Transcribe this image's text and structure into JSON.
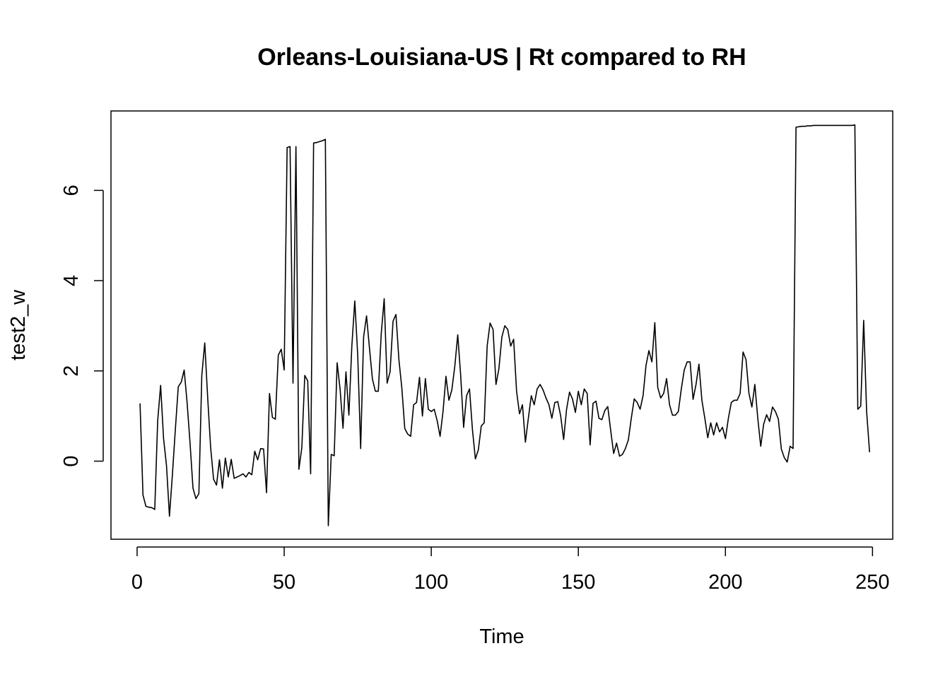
{
  "chart_data": {
    "type": "line",
    "title": "Orleans-Louisiana-US | Rt compared to RH",
    "xlabel": "Time",
    "ylabel": "test2_w",
    "xlim": [
      -8.88,
      256.88
    ],
    "ylim": [
      -1.73,
      7.76
    ],
    "x_ticks": [
      0,
      50,
      100,
      150,
      200,
      250
    ],
    "y_ticks": [
      0,
      2,
      4,
      6
    ],
    "grid": false,
    "legend": "none",
    "line_color": "#000000",
    "series": [
      {
        "x_start": 1,
        "x_step": 1,
        "values": [
          1.28,
          -0.75,
          -1.0,
          -1.02,
          -1.03,
          -1.07,
          0.9,
          1.68,
          0.5,
          -0.1,
          -1.22,
          -0.3,
          0.7,
          1.65,
          1.75,
          2.02,
          1.3,
          0.4,
          -0.6,
          -0.83,
          -0.72,
          1.9,
          2.62,
          1.4,
          0.3,
          -0.4,
          -0.53,
          0.03,
          -0.6,
          0.07,
          -0.35,
          0.04,
          -0.38,
          -0.35,
          -0.32,
          -0.28,
          -0.35,
          -0.25,
          -0.3,
          0.22,
          0.03,
          0.28,
          0.27,
          -0.7,
          1.5,
          0.97,
          0.93,
          2.35,
          2.48,
          2.02,
          6.95,
          6.97,
          1.73,
          6.97,
          -0.18,
          0.3,
          1.9,
          1.78,
          -0.28,
          7.05,
          7.06,
          7.08,
          7.1,
          7.13,
          -1.43,
          0.15,
          0.12,
          2.18,
          1.6,
          0.73,
          1.98,
          1.02,
          2.55,
          3.55,
          2.35,
          0.28,
          2.75,
          3.22,
          2.5,
          1.82,
          1.55,
          1.55,
          2.83,
          3.6,
          1.73,
          1.98,
          3.1,
          3.25,
          2.25,
          1.62,
          0.72,
          0.6,
          0.55,
          1.25,
          1.3,
          1.86,
          1.0,
          1.83,
          1.15,
          1.1,
          1.15,
          0.9,
          0.55,
          1.1,
          1.88,
          1.35,
          1.58,
          2.1,
          2.8,
          1.9,
          0.75,
          1.45,
          1.6,
          0.7,
          0.05,
          0.25,
          0.78,
          0.85,
          2.55,
          3.06,
          2.92,
          1.7,
          2.05,
          2.75,
          3.0,
          2.92,
          2.55,
          2.7,
          1.55,
          1.05,
          1.25,
          0.42,
          0.95,
          1.45,
          1.25,
          1.6,
          1.7,
          1.58,
          1.4,
          1.25,
          0.95,
          1.3,
          1.32,
          1.0,
          0.48,
          1.15,
          1.53,
          1.38,
          1.08,
          1.55,
          1.25,
          1.6,
          1.5,
          0.36,
          1.28,
          1.33,
          0.95,
          0.92,
          1.12,
          1.21,
          0.68,
          0.17,
          0.4,
          0.11,
          0.15,
          0.28,
          0.47,
          0.95,
          1.38,
          1.3,
          1.15,
          1.45,
          2.12,
          2.45,
          2.2,
          3.07,
          1.63,
          1.4,
          1.5,
          1.83,
          1.25,
          1.02,
          1.02,
          1.1,
          1.6,
          2.02,
          2.2,
          2.2,
          1.37,
          1.7,
          2.15,
          1.35,
          0.95,
          0.52,
          0.85,
          0.58,
          0.85,
          0.65,
          0.75,
          0.5,
          0.95,
          1.3,
          1.35,
          1.35,
          1.5,
          2.42,
          2.25,
          1.5,
          1.2,
          1.7,
          0.95,
          0.33,
          0.82,
          1.03,
          0.88,
          1.2,
          1.1,
          0.93,
          0.27,
          0.08,
          -0.02,
          0.33,
          0.28,
          7.4,
          7.41,
          7.42,
          7.42,
          7.43,
          7.43,
          7.44,
          7.44,
          7.44,
          7.44,
          7.44,
          7.44,
          7.44,
          7.44,
          7.44,
          7.44,
          7.44,
          7.44,
          7.44,
          7.44,
          7.45,
          1.15,
          1.22,
          3.12,
          1.1,
          0.2
        ]
      }
    ]
  }
}
